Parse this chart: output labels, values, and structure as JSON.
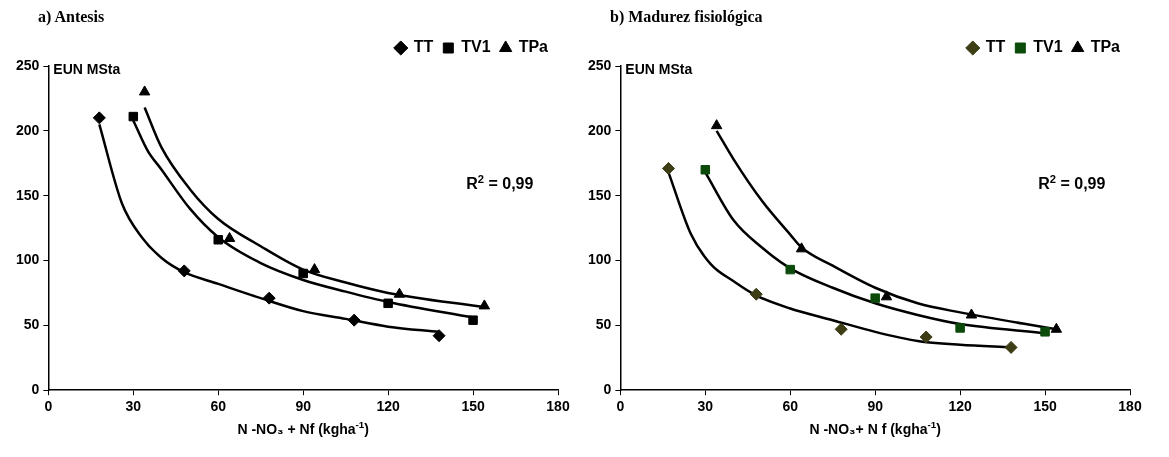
{
  "chart_data": [
    {
      "type": "scatter",
      "title": "a) Antesis",
      "xlabel": "N -NO₃ + Nf (kgha$^{-1}$)",
      "ylabel": "EUN MSta",
      "annotations": [
        "R$^{2}$ = 0,99"
      ],
      "legend": "top right",
      "grid": false,
      "xlim": [
        0,
        180
      ],
      "xticks": [
        0,
        30,
        60,
        90,
        120,
        150,
        180
      ],
      "ylim": [
        0,
        250
      ],
      "yticks": [
        0,
        50,
        100,
        150,
        200,
        250
      ],
      "series": [
        {
          "name": "TT",
          "type": "scatter",
          "marker": "diamond",
          "color": "#000000",
          "x": [
            18,
            48,
            78,
            108,
            138
          ],
          "values": [
            210,
            92,
            71,
            54,
            42
          ]
        },
        {
          "name": "TV1",
          "type": "scatter",
          "marker": "square",
          "color": "#000000",
          "x": [
            30,
            60,
            90,
            120,
            150
          ],
          "values": [
            211,
            116,
            90,
            67,
            54
          ]
        },
        {
          "name": "TPa",
          "type": "scatter",
          "marker": "triangle",
          "color": "#000000",
          "x": [
            34,
            64,
            94,
            124,
            154
          ],
          "values": [
            230,
            117,
            93,
            74,
            65
          ]
        },
        {
          "type": "line",
          "marker": "none",
          "color": "#000000",
          "x": [
            18,
            26,
            33,
            40,
            48,
            60,
            75,
            90,
            105,
            120,
            138
          ],
          "values": [
            205,
            144,
            118,
            102,
            91,
            82,
            71,
            61,
            55,
            49,
            45
          ]
        },
        {
          "type": "line",
          "marker": "none",
          "color": "#000000",
          "x": [
            30,
            35,
            40,
            50,
            60,
            75,
            90,
            105,
            120,
            150
          ],
          "values": [
            208,
            185,
            170,
            140,
            118,
            98,
            85,
            76,
            68,
            56
          ]
        },
        {
          "type": "line",
          "marker": "none",
          "color": "#000000",
          "x": [
            34,
            40,
            50,
            60,
            75,
            90,
            105,
            120,
            154
          ],
          "values": [
            218,
            187,
            155,
            132,
            111,
            93,
            83,
            75,
            64
          ]
        }
      ]
    },
    {
      "type": "scatter",
      "title": "b) Madurez fisiológica",
      "xlabel": "N -NO₃+ N f (kgha$^{-1}$)",
      "ylabel": "EUN MSta",
      "annotations": [
        "R$^{2}$ = 0,99"
      ],
      "legend": "top right",
      "grid": false,
      "xlim": [
        0,
        180
      ],
      "xticks": [
        0,
        30,
        60,
        90,
        120,
        150,
        180
      ],
      "ylim": [
        0,
        250
      ],
      "yticks": [
        0,
        50,
        100,
        150,
        200,
        250
      ],
      "series": [
        {
          "name": "TT",
          "type": "scatter",
          "marker": "diamond",
          "color": "#3d3d16",
          "x": [
            17,
            48,
            78,
            108,
            138
          ],
          "values": [
            171,
            74,
            47,
            41,
            33
          ]
        },
        {
          "name": "TV1",
          "type": "scatter",
          "marker": "square",
          "color": "#0b4a0b",
          "x": [
            30,
            60,
            90,
            120,
            150
          ],
          "values": [
            170,
            93,
            71,
            48,
            45
          ]
        },
        {
          "name": "TPa",
          "type": "scatter",
          "marker": "triangle",
          "color": "#000000",
          "x": [
            34,
            64,
            94,
            124,
            154
          ],
          "values": [
            204,
            109,
            72,
            58,
            47
          ]
        },
        {
          "type": "line",
          "marker": "none",
          "color": "#000000",
          "x": [
            17,
            25,
            32,
            40,
            48,
            60,
            75,
            90,
            105,
            120,
            138
          ],
          "values": [
            168,
            120,
            97,
            84,
            73,
            63,
            54,
            45,
            38,
            35,
            33
          ]
        },
        {
          "type": "line",
          "marker": "none",
          "color": "#000000",
          "x": [
            30,
            40,
            50,
            60,
            75,
            90,
            105,
            120,
            150
          ],
          "values": [
            168,
            131,
            110,
            94,
            79,
            67,
            58,
            51,
            44
          ]
        },
        {
          "type": "line",
          "marker": "none",
          "color": "#000000",
          "x": [
            34,
            40,
            50,
            60,
            64,
            75,
            90,
            105,
            120,
            154
          ],
          "values": [
            200,
            178,
            146,
            120,
            110,
            96,
            79,
            67,
            60,
            47
          ]
        }
      ]
    }
  ]
}
